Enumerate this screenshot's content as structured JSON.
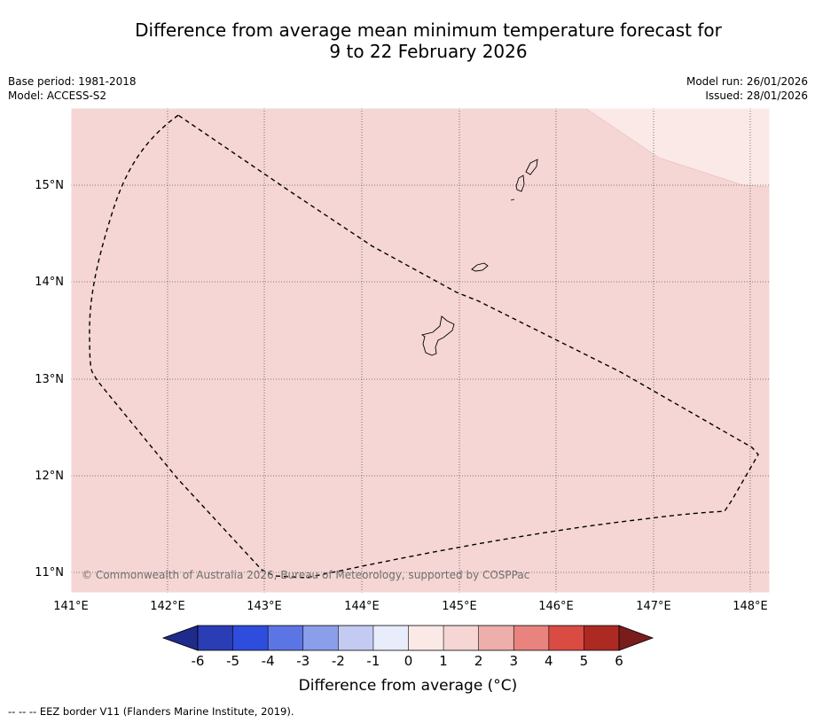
{
  "title": {
    "line1": "Difference from average mean minimum temperature forecast for",
    "line2": "9 to 22 February 2026"
  },
  "meta": {
    "base_period": "Base period: 1981-2018",
    "model": "Model: ACCESS-S2",
    "model_run": "Model run: 26/01/2026",
    "issued": "Issued: 28/01/2026"
  },
  "map": {
    "lat_labels": [
      "15°N",
      "14°N",
      "13°N",
      "12°N",
      "11°N"
    ],
    "lon_labels": [
      "141°E",
      "142°E",
      "143°E",
      "144°E",
      "145°E",
      "146°E",
      "147°E",
      "148°E"
    ],
    "copyright": "© Commonwealth of Australia 2026, Bureau of Meteorology, supported by COSPPac",
    "fill_colors": {
      "main": "#f5d6d4",
      "light": "#fbe9e7",
      "land_outline": "#000000"
    },
    "region_anomaly_ranges": [
      {
        "region": "most of map",
        "range": [
          1,
          2
        ]
      },
      {
        "region": "north-east corner",
        "range": [
          0,
          1
        ]
      }
    ]
  },
  "colorbar": {
    "title": "Difference from average (°C)",
    "ticks": [
      "-6",
      "-5",
      "-4",
      "-3",
      "-2",
      "-1",
      "0",
      "1",
      "2",
      "3",
      "4",
      "5",
      "6"
    ],
    "under_color": "#1e2b8a",
    "over_color": "#7b1c1c",
    "colors": [
      "#2a3db4",
      "#2f4ddc",
      "#5c75e4",
      "#8a9ee9",
      "#c4cbf3",
      "#e8ecfb",
      "#fbe9e7",
      "#f5d6d4",
      "#eeaeaa",
      "#e8837e",
      "#d94b43",
      "#ad2a23"
    ]
  },
  "footnote": "--  --  -- EEZ border V11 (Flanders Marine Institute, 2019)."
}
